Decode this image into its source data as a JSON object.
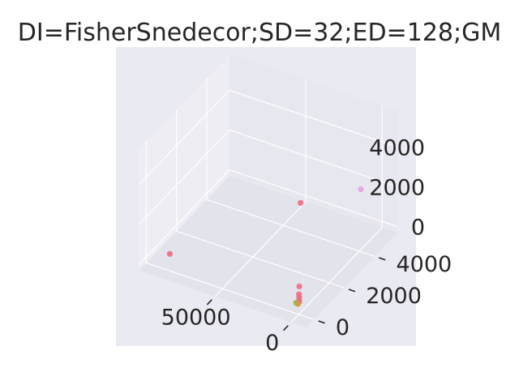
{
  "chart_data": {
    "type": "scatter",
    "projection": "3d",
    "title": "DI=FisherSnedecor;SD=32;ED=128;GM",
    "xlabel": "",
    "ylabel": "",
    "zlabel": "",
    "grid": true,
    "legend": "none",
    "xlim": [
      -10000,
      100000
    ],
    "ylim": [
      -500,
      5500
    ],
    "zlim": [
      -300,
      5800
    ],
    "x_ticks": [
      0,
      50000
    ],
    "y_ticks": [
      0,
      2000,
      4000
    ],
    "z_ticks": [
      0,
      2000,
      4000
    ],
    "x_tick_labels": [
      "0",
      "50000"
    ],
    "y_tick_labels": [
      "0",
      "2000",
      "4000"
    ],
    "z_tick_labels": [
      "0",
      "2000",
      "4000"
    ],
    "colors": {
      "pane_background": "#EAEAF2",
      "grid": "#FFFFFF",
      "text": "#262626"
    },
    "points": [
      {
        "x": 50,
        "y": 120,
        "z": 5200,
        "color": "#F06A82"
      },
      {
        "x": 1200,
        "y": 150,
        "z": 950,
        "color": "#F06A82"
      },
      {
        "x": 900,
        "y": 100,
        "z": 600,
        "color": "#F06A82"
      },
      {
        "x": 700,
        "y": 90,
        "z": 450,
        "color": "#F06A82"
      },
      {
        "x": 600,
        "y": 80,
        "z": 250,
        "color": "#E8707A"
      },
      {
        "x": 900,
        "y": 60,
        "z": 200,
        "color": "#F0788A"
      },
      {
        "x": 1200,
        "y": 50,
        "z": 150,
        "color": "#C9A040"
      },
      {
        "x": 2500,
        "y": 80,
        "z": 150,
        "color": "#96B43C"
      },
      {
        "x": 1800,
        "y": 200,
        "z": 180,
        "color": "#5FB87A"
      },
      {
        "x": 88000,
        "y": 350,
        "z": 180,
        "color": "#F06A82"
      },
      {
        "x": 5000,
        "y": 4600,
        "z": 2200,
        "color": "#E6A0E6"
      }
    ]
  }
}
